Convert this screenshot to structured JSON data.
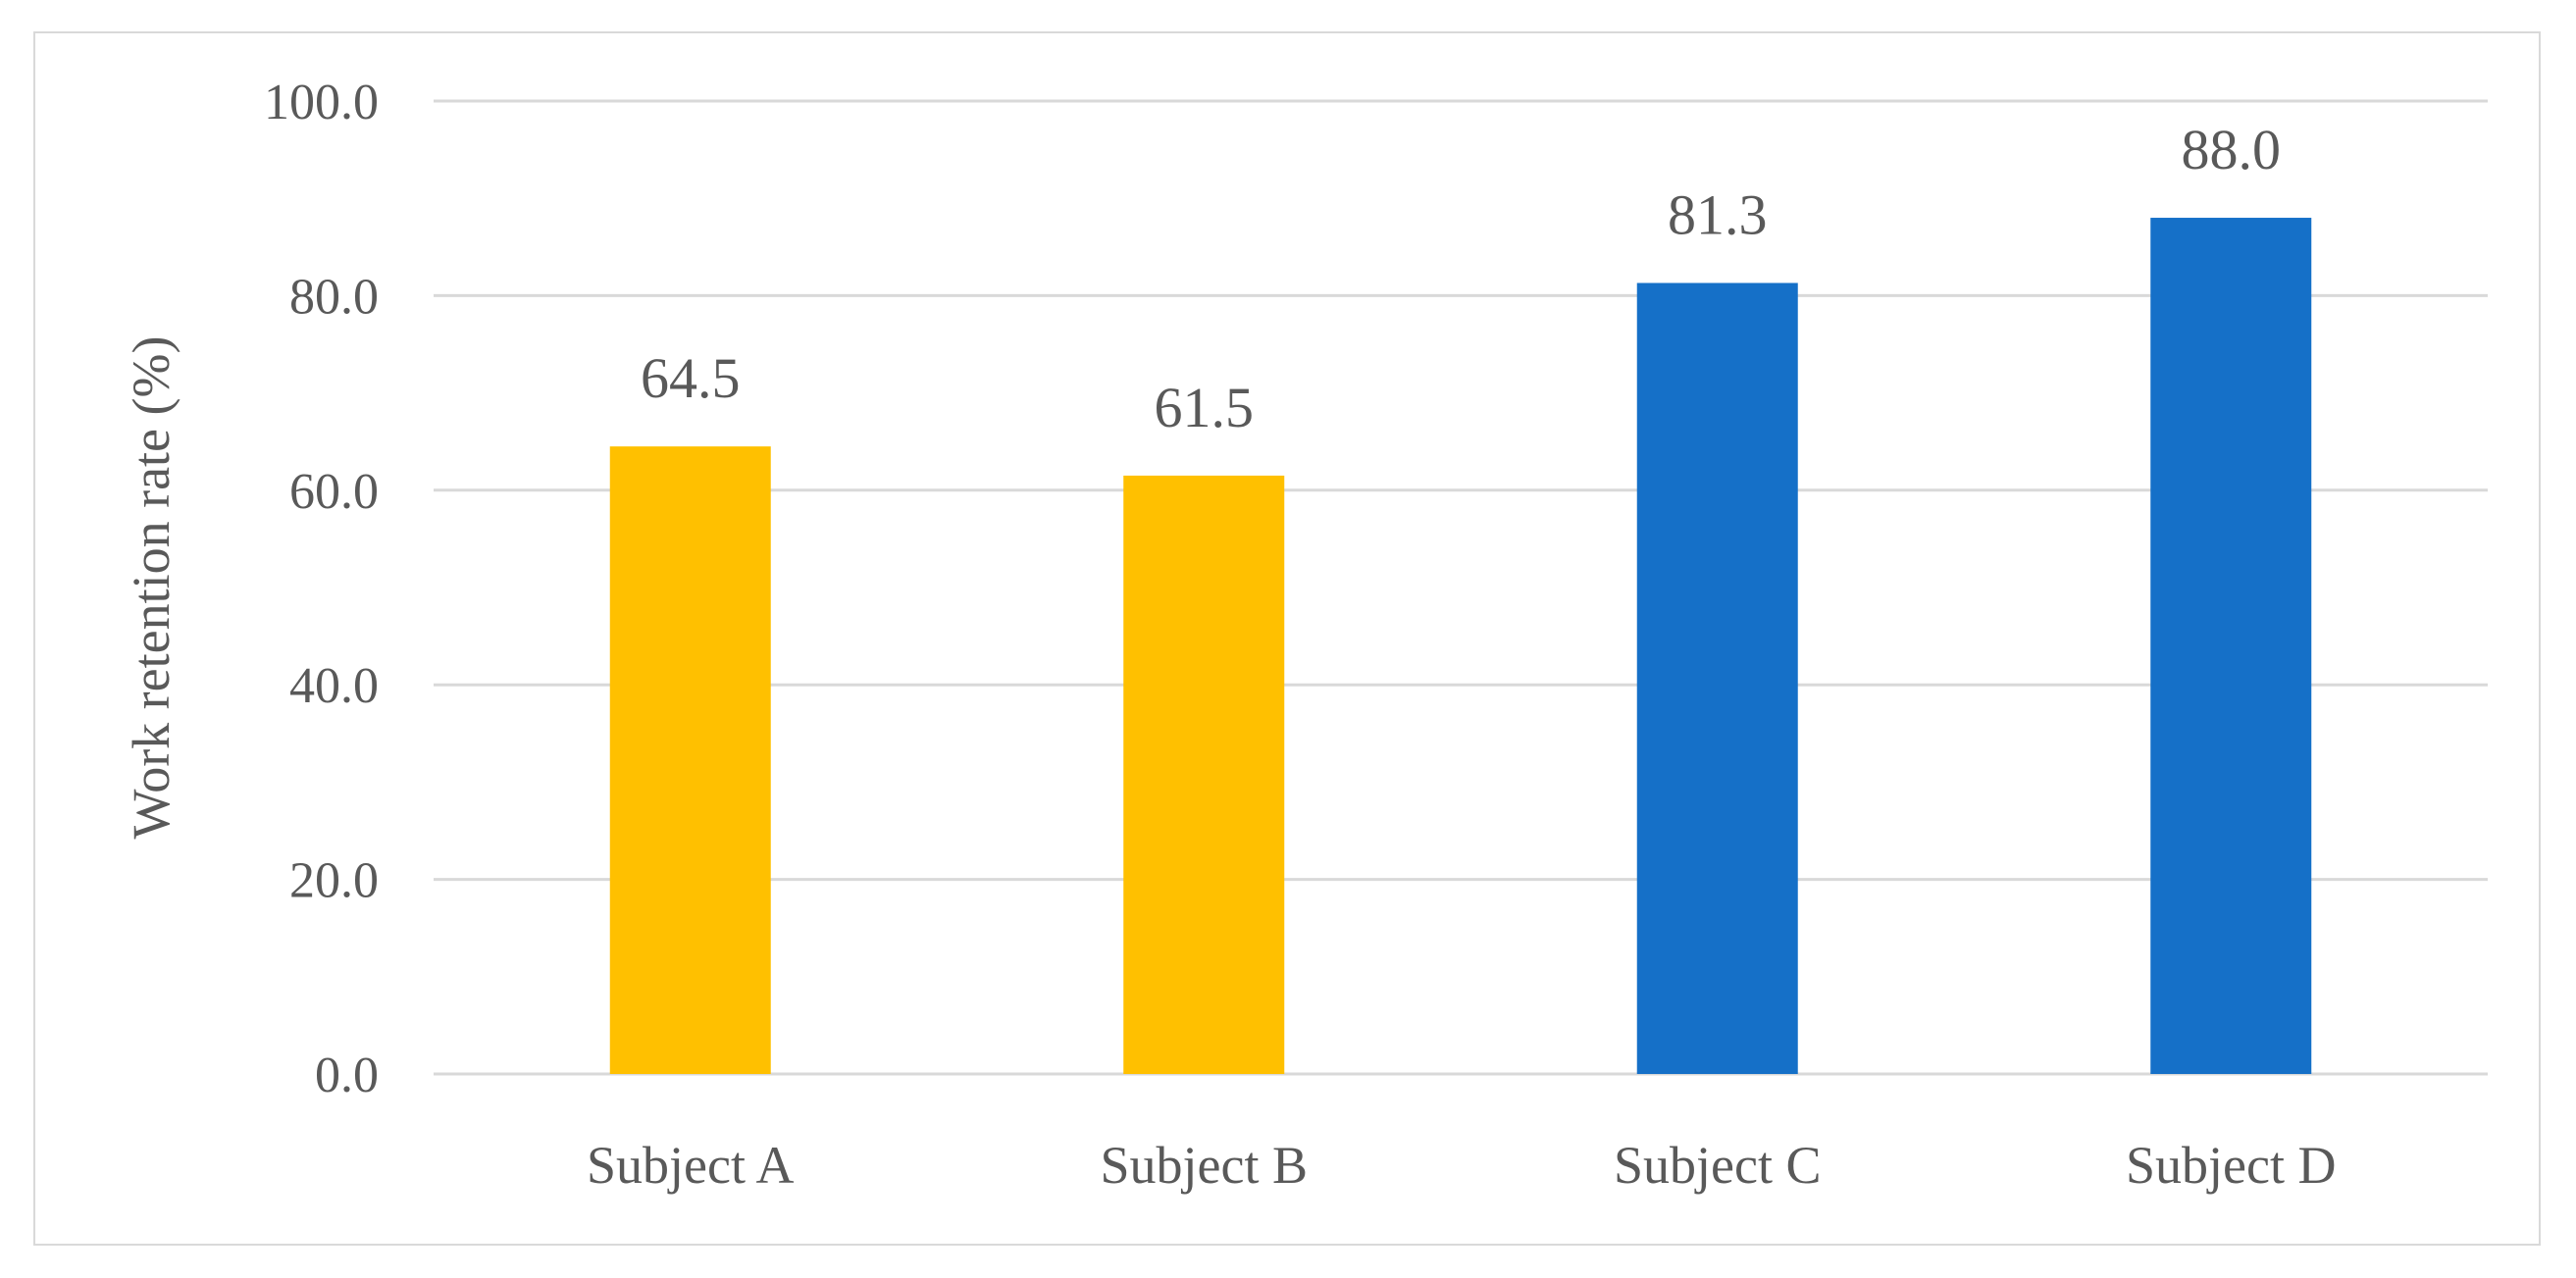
{
  "chart_data": {
    "type": "bar",
    "title": "",
    "xlabel": "",
    "ylabel": "Work retention rate (%)",
    "ylim": [
      0,
      100
    ],
    "yticks": [
      0,
      20,
      40,
      60,
      80,
      100
    ],
    "ytick_labels": [
      "0.0",
      "20.0",
      "40.0",
      "60.0",
      "80.0",
      "100.0"
    ],
    "grid": true,
    "legend": "none",
    "categories": [
      "Subject A",
      "Subject B",
      "Subject C",
      "Subject D"
    ],
    "values": [
      64.5,
      61.5,
      81.3,
      88.0
    ],
    "value_labels": [
      "64.5",
      "61.5",
      "81.3",
      "88.0"
    ],
    "bar_colors": [
      "#FFC000",
      "#FFC000",
      "#1570C8",
      "#1570C8"
    ]
  }
}
